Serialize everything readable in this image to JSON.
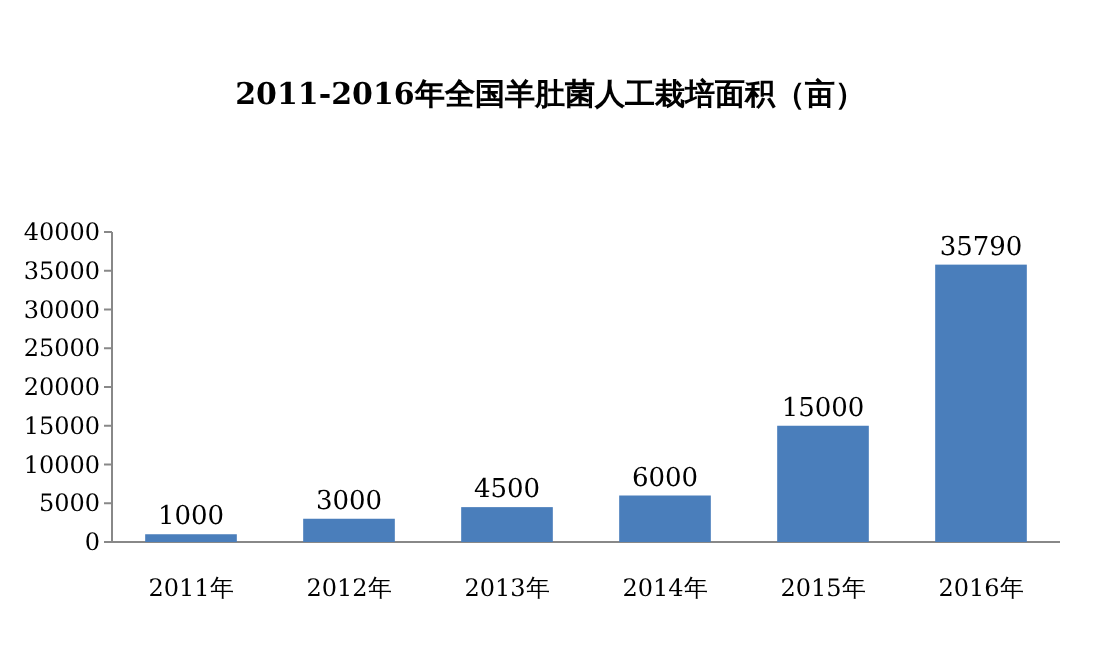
{
  "chart_data": {
    "type": "bar",
    "title": "2011-2016年全国羊肚菌人工栽培面积（亩）",
    "categories": [
      "2011年",
      "2012年",
      "2013年",
      "2014年",
      "2015年",
      "2016年"
    ],
    "values": [
      1000,
      3000,
      4500,
      6000,
      15000,
      35790
    ],
    "color": "#4a7ebb",
    "ylim": [
      0,
      40000
    ],
    "yticks": [
      0,
      5000,
      10000,
      15000,
      20000,
      25000,
      30000,
      35000,
      40000
    ],
    "data_labels": true,
    "grid": false
  }
}
